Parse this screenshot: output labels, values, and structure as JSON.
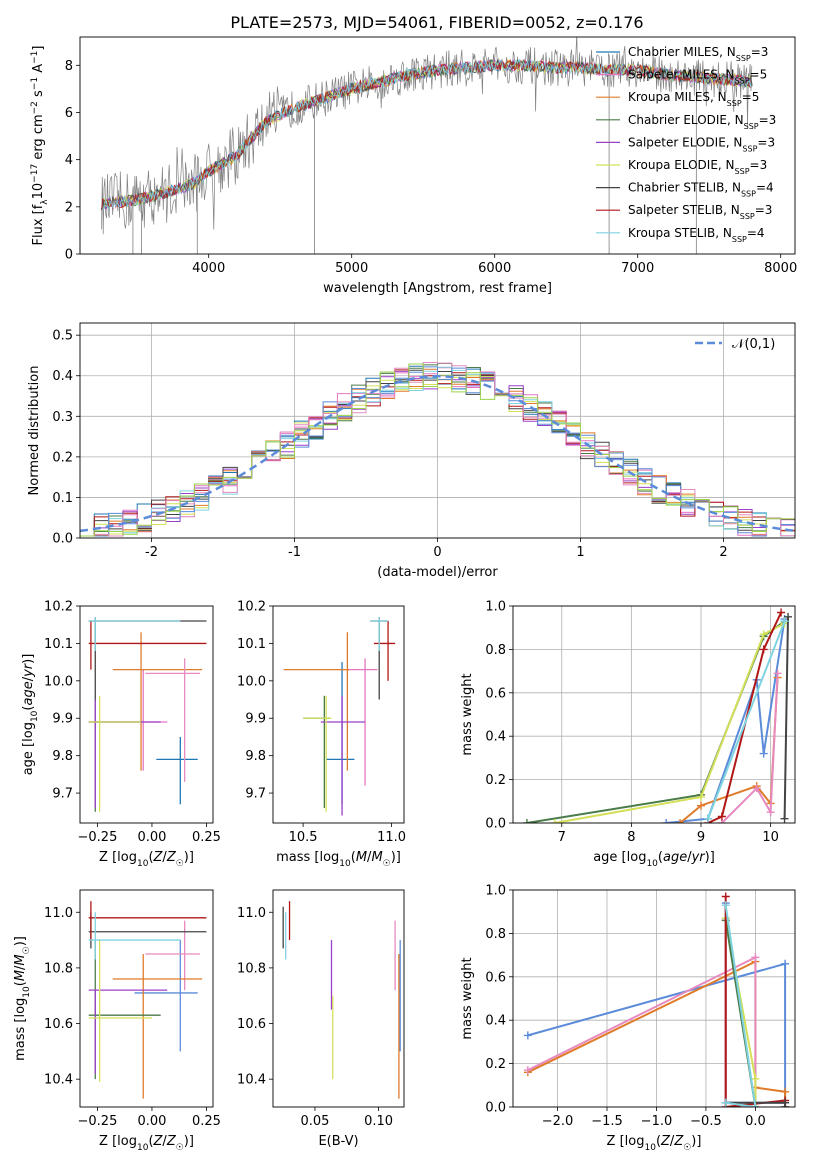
{
  "figure": {
    "title": "PLATE=2573, MJD=54061, FIBERID=0052, z=0.176"
  },
  "colors": {
    "data": "#808080",
    "Chabrier MILES": "#1f77b4",
    "Salpeter MILES": "#e377c2",
    "Kroupa MILES": "#e07b2a",
    "Chabrier ELODIE": "#4a7c4a",
    "Salpeter ELODIE": "#9a40c8",
    "Kroupa ELODIE": "#d4e05a",
    "Chabrier STELIB": "#444444",
    "Salpeter STELIB": "#b01818",
    "Kroupa STELIB": "#7fd3e0",
    "ellipse_blue": "#5b8bd9",
    "ellipse_pink": "#e68abf",
    "ellipse_lime": "#9dd34a"
  },
  "chart_data": [
    {
      "id": "spectrum",
      "type": "line",
      "title": "PLATE=2573, MJD=54061, FIBERID=0052, z=0.176",
      "xlabel": "wavelength [Angstrom, rest frame]",
      "ylabel": "Flux [f_λ 10^-17 erg cm^-2 s^-1 A^-1]",
      "xlim": [
        3100,
        8100
      ],
      "ylim": [
        0,
        9.2
      ],
      "xticks": [
        4000,
        5000,
        6000,
        7000,
        8000
      ],
      "yticks": [
        0,
        2,
        4,
        6,
        8
      ],
      "continuum_x": [
        3250,
        3500,
        3700,
        3900,
        4000,
        4200,
        4400,
        4600,
        4800,
        5000,
        5200,
        5400,
        5600,
        5800,
        6000,
        6200,
        6400,
        6600,
        6800,
        7000,
        7200,
        7400,
        7600,
        7800
      ],
      "continuum_y": [
        2.1,
        2.3,
        2.6,
        3.0,
        3.5,
        4.2,
        5.6,
        6.2,
        6.6,
        7.0,
        7.3,
        7.6,
        7.8,
        7.9,
        8.0,
        8.0,
        7.9,
        7.9,
        7.8,
        7.8,
        7.6,
        7.5,
        7.4,
        7.3
      ],
      "series": [
        {
          "name": "Chabrier MILES",
          "nssp": 3
        },
        {
          "name": "Salpeter MILES",
          "nssp": 5
        },
        {
          "name": "Kroupa MILES",
          "nssp": 5
        },
        {
          "name": "Chabrier ELODIE",
          "nssp": 3
        },
        {
          "name": "Salpeter ELODIE",
          "nssp": 3
        },
        {
          "name": "Kroupa ELODIE",
          "nssp": 3
        },
        {
          "name": "Chabrier STELIB",
          "nssp": 4
        },
        {
          "name": "Salpeter STELIB",
          "nssp": 3
        },
        {
          "name": "Kroupa STELIB",
          "nssp": 4
        }
      ],
      "legend_labels": [
        "Chabrier MILES, N_SSP=3",
        "Salpeter MILES, N_SSP=5",
        "Kroupa MILES, N_SSP=5",
        "Chabrier ELODIE, N_SSP=3",
        "Salpeter ELODIE, N_SSP=3",
        "Kroupa ELODIE, N_SSP=3",
        "Chabrier STELIB, N_SSP=4",
        "Salpeter STELIB, N_SSP=3",
        "Kroupa STELIB, N_SSP=4"
      ],
      "legend": "right"
    },
    {
      "id": "residuals",
      "type": "line",
      "xlabel": "(data-model)/error",
      "ylabel": "Normed distribution",
      "xlim": [
        -2.5,
        2.5
      ],
      "ylim": [
        0,
        0.53
      ],
      "xticks": [
        -2,
        -1,
        0,
        1,
        2
      ],
      "yticks": [
        0.0,
        0.1,
        0.2,
        0.3,
        0.4,
        0.5
      ],
      "grid": true,
      "legend_label": "𝒩(0,1)",
      "legend": "top-right",
      "bin_width": 0.1,
      "gaussian": {
        "mean": 0,
        "sigma": 1
      }
    },
    {
      "id": "age_vs_Z",
      "type": "scatter",
      "xlabel": "Z [log10(Z/Z☉)]",
      "ylabel": "age [log10(age/yr)]",
      "xlim": [
        -0.33,
        0.28
      ],
      "ylim": [
        9.62,
        10.2
      ],
      "xticks": [
        -0.25,
        0.0,
        0.25
      ],
      "xticklabels": [
        "−0.25",
        "0.00",
        "0.25"
      ],
      "yticks": [
        9.7,
        9.8,
        9.9,
        10.0,
        10.1,
        10.2
      ],
      "crosses": [
        {
          "c": "Chabrier MILES",
          "x": 0.13,
          "y": 9.79,
          "xe": [
            0.02,
            0.21
          ],
          "ye": [
            9.67,
            9.85
          ]
        },
        {
          "c": "Salpeter MILES",
          "x": -0.04,
          "y": 9.89,
          "xe": [
            -0.28,
            0.07
          ],
          "ye": [
            9.76,
            10.03
          ]
        },
        {
          "c": "Kroupa MILES",
          "x": -0.05,
          "y": 10.03,
          "xe": [
            -0.18,
            0.23
          ],
          "ye": [
            9.76,
            10.13
          ]
        },
        {
          "c": "Chabrier ELODIE",
          "x": -0.26,
          "y": 9.89,
          "xe": [
            -0.29,
            -0.05
          ],
          "ye": [
            9.65,
            9.95
          ]
        },
        {
          "c": "Salpeter ELODIE",
          "x": -0.26,
          "y": 9.89,
          "xe": [
            -0.29,
            0.04
          ],
          "ye": [
            9.66,
            9.95
          ]
        },
        {
          "c": "Kroupa ELODIE",
          "x": -0.24,
          "y": 9.89,
          "xe": [
            -0.29,
            -0.05
          ],
          "ye": [
            9.65,
            9.96
          ]
        },
        {
          "c": "Chabrier STELIB",
          "x": -0.26,
          "y": 10.16,
          "xe": [
            -0.29,
            0.25
          ],
          "ye": [
            9.95,
            10.17
          ]
        },
        {
          "c": "Salpeter STELIB",
          "x": -0.28,
          "y": 10.1,
          "xe": [
            -0.29,
            0.25
          ],
          "ye": [
            10.03,
            10.16
          ]
        },
        {
          "c": "Kroupa STELIB",
          "x": -0.26,
          "y": 10.16,
          "xe": [
            -0.29,
            0.13
          ],
          "ye": [
            10.08,
            10.17
          ]
        },
        {
          "c": "ellipse_pink",
          "x": 0.15,
          "y": 10.02,
          "xe": [
            -0.03,
            0.22
          ],
          "ye": [
            9.73,
            10.06
          ]
        }
      ]
    },
    {
      "id": "age_vs_mass",
      "type": "scatter",
      "xlabel": "mass [log10(M/M☉)]",
      "ylabel": "",
      "xlim": [
        10.33,
        11.07
      ],
      "ylim": [
        9.62,
        10.2
      ],
      "xticks": [
        10.5,
        11.0
      ],
      "xticklabels": [
        "10.5",
        "11.0"
      ],
      "yticks": [
        9.7,
        9.8,
        9.9,
        10.0,
        10.1,
        10.2
      ],
      "crosses": [
        {
          "c": "Chabrier MILES",
          "x": 10.72,
          "y": 9.79,
          "xe": [
            10.63,
            10.79
          ],
          "ye": [
            9.67,
            10.05
          ]
        },
        {
          "c": "Salpeter MILES",
          "x": 10.85,
          "y": 10.03,
          "xe": [
            10.74,
            10.92
          ],
          "ye": [
            9.72,
            10.06
          ]
        },
        {
          "c": "Kroupa MILES",
          "x": 10.75,
          "y": 10.03,
          "xe": [
            10.39,
            10.76
          ],
          "ye": [
            9.76,
            10.13
          ]
        },
        {
          "c": "Chabrier ELODIE",
          "x": 10.62,
          "y": 9.9,
          "xe": [
            10.5,
            10.65
          ],
          "ye": [
            9.66,
            9.96
          ]
        },
        {
          "c": "Salpeter ELODIE",
          "x": 10.72,
          "y": 9.89,
          "xe": [
            10.6,
            10.85
          ],
          "ye": [
            9.64,
            9.96
          ]
        },
        {
          "c": "Kroupa ELODIE",
          "x": 10.63,
          "y": 9.9,
          "xe": [
            10.5,
            10.66
          ],
          "ye": [
            9.65,
            9.96
          ]
        },
        {
          "c": "Chabrier STELIB",
          "x": 10.93,
          "y": 10.16,
          "xe": [
            10.88,
            10.98
          ],
          "ye": [
            9.95,
            10.17
          ]
        },
        {
          "c": "Salpeter STELIB",
          "x": 10.98,
          "y": 10.1,
          "xe": [
            10.9,
            11.02
          ],
          "ye": [
            10.0,
            10.16
          ]
        },
        {
          "c": "Kroupa STELIB",
          "x": 10.93,
          "y": 10.16,
          "xe": [
            10.88,
            10.98
          ],
          "ye": [
            10.08,
            10.17
          ]
        }
      ]
    },
    {
      "id": "weight_vs_age",
      "type": "line",
      "xlabel": "age [log10(age/yr)]",
      "ylabel": "mass weight",
      "xlim": [
        6.3,
        10.35
      ],
      "ylim": [
        0,
        1.0
      ],
      "xticks": [
        7,
        8,
        9,
        10
      ],
      "yticks": [
        0.0,
        0.2,
        0.4,
        0.6,
        0.8,
        1.0
      ],
      "grid": true,
      "series": [
        {
          "c": "ellipse_blue",
          "x": [
            8.5,
            9.1,
            9.8,
            9.9,
            10.2
          ],
          "y": [
            0.0,
            0.02,
            0.66,
            0.32,
            0.94
          ]
        },
        {
          "c": "Kroupa MILES",
          "x": [
            8.7,
            9.0,
            9.8,
            10.0,
            10.1
          ],
          "y": [
            0.0,
            0.08,
            0.17,
            0.09,
            0.67
          ]
        },
        {
          "c": "ellipse_pink",
          "x": [
            9.3,
            9.8,
            10.0,
            10.1
          ],
          "y": [
            0.0,
            0.16,
            0.05,
            0.69
          ]
        },
        {
          "c": "Chabrier ELODIE",
          "x": [
            6.5,
            9.0,
            9.9,
            10.2
          ],
          "y": [
            0.0,
            0.13,
            0.86,
            0.93
          ]
        },
        {
          "c": "Kroupa ELODIE",
          "x": [
            6.9,
            9.0,
            9.9,
            10.2
          ],
          "y": [
            0.0,
            0.12,
            0.87,
            0.92
          ]
        },
        {
          "c": "Salpeter STELIB",
          "x": [
            9.1,
            9.3,
            9.9,
            10.15
          ],
          "y": [
            0.0,
            0.03,
            0.8,
            0.97
          ]
        },
        {
          "c": "Chabrier STELIB",
          "x": [
            10.2,
            10.25
          ],
          "y": [
            0.02,
            0.95
          ]
        },
        {
          "c": "Kroupa STELIB",
          "x": [
            9.1,
            10.2
          ],
          "y": [
            0.02,
            0.93
          ]
        }
      ]
    },
    {
      "id": "mass_vs_Z",
      "type": "scatter",
      "xlabel": "Z [log10(Z/Z☉)]",
      "ylabel": "mass [log10(M/M☉)]",
      "xlim": [
        -0.33,
        0.28
      ],
      "ylim": [
        10.3,
        11.08
      ],
      "xticks": [
        -0.25,
        0.0,
        0.25
      ],
      "xticklabels": [
        "−0.25",
        "0.00",
        "0.25"
      ],
      "yticks": [
        10.4,
        10.6,
        10.8,
        11.0
      ],
      "crosses": [
        {
          "c": "ellipse_blue",
          "x": 0.13,
          "y": 10.71,
          "xe": [
            -0.08,
            0.21
          ],
          "ye": [
            10.5,
            10.9
          ]
        },
        {
          "c": "ellipse_pink",
          "x": 0.15,
          "y": 10.85,
          "xe": [
            -0.03,
            0.22
          ],
          "ye": [
            10.72,
            10.97
          ]
        },
        {
          "c": "Kroupa MILES",
          "x": -0.04,
          "y": 10.76,
          "xe": [
            -0.18,
            0.23
          ],
          "ye": [
            10.33,
            10.85
          ]
        },
        {
          "c": "Chabrier ELODIE",
          "x": -0.26,
          "y": 10.63,
          "xe": [
            -0.29,
            0.04
          ],
          "ye": [
            10.4,
            10.9
          ]
        },
        {
          "c": "Salpeter ELODIE",
          "x": -0.26,
          "y": 10.72,
          "xe": [
            -0.29,
            0.07
          ],
          "ye": [
            10.42,
            10.72
          ]
        },
        {
          "c": "Kroupa ELODIE",
          "x": -0.24,
          "y": 10.62,
          "xe": [
            -0.29,
            0.0
          ],
          "ye": [
            10.39,
            10.9
          ]
        },
        {
          "c": "Chabrier STELIB",
          "x": -0.28,
          "y": 10.93,
          "xe": [
            -0.29,
            0.25
          ],
          "ye": [
            10.87,
            11.0
          ]
        },
        {
          "c": "Salpeter STELIB",
          "x": -0.28,
          "y": 10.98,
          "xe": [
            -0.29,
            0.25
          ],
          "ye": [
            10.9,
            11.04
          ]
        },
        {
          "c": "Kroupa STELIB",
          "x": -0.26,
          "y": 10.9,
          "xe": [
            -0.29,
            0.13
          ],
          "ye": [
            10.83,
            11.0
          ]
        }
      ]
    },
    {
      "id": "mass_vs_ebv",
      "type": "scatter",
      "xlabel": "E(B-V)",
      "ylabel": "",
      "xlim": [
        0.017,
        0.12
      ],
      "ylim": [
        10.3,
        11.08
      ],
      "xticks": [
        0.05,
        0.1
      ],
      "xticklabels": [
        "0.05",
        "0.10"
      ],
      "yticks": [
        10.4,
        10.6,
        10.8,
        11.0
      ],
      "crosses": [
        {
          "c": "Chabrier STELIB",
          "x": 0.025,
          "y": 10.93,
          "xe": [
            0.025,
            0.025
          ],
          "ye": [
            10.87,
            11.02
          ]
        },
        {
          "c": "Kroupa STELIB",
          "x": 0.027,
          "y": 10.9,
          "xe": [
            0.027,
            0.027
          ],
          "ye": [
            10.83,
            11.0
          ]
        },
        {
          "c": "Salpeter STELIB",
          "x": 0.03,
          "y": 10.98,
          "xe": [
            0.03,
            0.03
          ],
          "ye": [
            10.9,
            11.04
          ]
        },
        {
          "c": "Salpeter ELODIE",
          "x": 0.063,
          "y": 10.72,
          "xe": [
            0.063,
            0.063
          ],
          "ye": [
            10.65,
            10.9
          ]
        },
        {
          "c": "Kroupa ELODIE",
          "x": 0.064,
          "y": 10.6,
          "xe": [
            0.064,
            0.064
          ],
          "ye": [
            10.4,
            10.7
          ]
        },
        {
          "c": "ellipse_pink",
          "x": 0.113,
          "y": 10.85,
          "xe": [
            0.113,
            0.113
          ],
          "ye": [
            10.72,
            10.97
          ]
        },
        {
          "c": "Kroupa MILES",
          "x": 0.116,
          "y": 10.76,
          "xe": [
            0.116,
            0.116
          ],
          "ye": [
            10.33,
            10.85
          ]
        },
        {
          "c": "ellipse_blue",
          "x": 0.117,
          "y": 10.71,
          "xe": [
            0.117,
            0.117
          ],
          "ye": [
            10.5,
            10.9
          ]
        }
      ]
    },
    {
      "id": "weight_vs_Z",
      "type": "line",
      "xlabel": "Z [log10(Z/Z☉)]",
      "ylabel": "mass weight",
      "xlim": [
        -2.45,
        0.4
      ],
      "ylim": [
        0,
        1.0
      ],
      "xticks": [
        -2.0,
        -1.5,
        -1.0,
        -0.5,
        0.0
      ],
      "xticklabels": [
        "−2.0",
        "−1.5",
        "−1.0",
        "−0.5",
        "0.0"
      ],
      "yticks": [
        0.0,
        0.2,
        0.4,
        0.6,
        0.8,
        1.0
      ],
      "grid": true,
      "series": [
        {
          "c": "ellipse_blue",
          "x": [
            -2.3,
            0.3,
            0.3,
            -0.3,
            -0.3
          ],
          "y": [
            0.33,
            0.66,
            0.02,
            0.02,
            0.94
          ]
        },
        {
          "c": "Kroupa MILES",
          "x": [
            -2.3,
            0.0,
            0.0,
            0.3,
            0.3
          ],
          "y": [
            0.16,
            0.67,
            0.09,
            0.07,
            0.0
          ]
        },
        {
          "c": "ellipse_pink",
          "x": [
            -2.3,
            0.0,
            0.0,
            -0.3,
            -0.3
          ],
          "y": [
            0.17,
            0.69,
            0.0,
            0.02,
            0.87
          ]
        },
        {
          "c": "Kroupa ELODIE",
          "x": [
            -0.3,
            0.0,
            0.0
          ],
          "y": [
            0.87,
            0.13,
            0.0
          ]
        },
        {
          "c": "Chabrier ELODIE",
          "x": [
            -0.3,
            0.0
          ],
          "y": [
            0.86,
            0.0
          ]
        },
        {
          "c": "Salpeter STELIB",
          "x": [
            -0.3,
            -0.3,
            0.3
          ],
          "y": [
            0.97,
            0.0,
            0.03
          ]
        },
        {
          "c": "Chabrier STELIB",
          "x": [
            -0.3,
            0.3,
            0.3
          ],
          "y": [
            0.02,
            0.02,
            0.0
          ]
        },
        {
          "c": "Kroupa STELIB",
          "x": [
            -0.3,
            0.0,
            -0.3
          ],
          "y": [
            0.02,
            0.0,
            0.93
          ]
        }
      ]
    }
  ]
}
